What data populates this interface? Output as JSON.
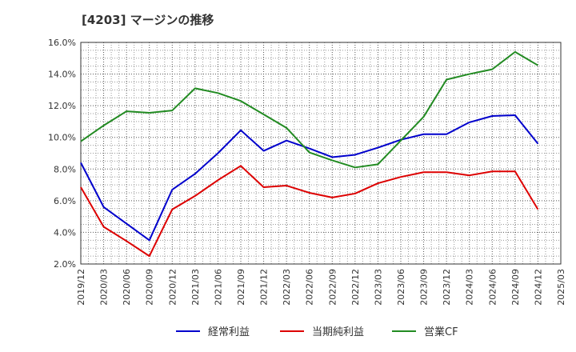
{
  "chart_data": {
    "type": "line",
    "title": "[4203]  マージンの推移",
    "xlabel": "",
    "ylabel": "",
    "x": [
      "2019/12",
      "2020/03",
      "2020/06",
      "2020/09",
      "2020/12",
      "2021/03",
      "2021/06",
      "2021/09",
      "2021/12",
      "2022/03",
      "2022/06",
      "2022/09",
      "2022/12",
      "2023/03",
      "2023/06",
      "2023/09",
      "2023/12",
      "2024/03",
      "2024/06",
      "2024/09",
      "2024/12",
      "2025/03"
    ],
    "ylim": [
      2.0,
      16.0
    ],
    "yticks": [
      2.0,
      4.0,
      6.0,
      8.0,
      10.0,
      12.0,
      14.0,
      16.0
    ],
    "ytick_suffix": "%",
    "grid": true,
    "legend_position": "bottom",
    "series": [
      {
        "name": "経常利益",
        "color": "#0000cc",
        "values": [
          8.4,
          5.6,
          4.55,
          3.5,
          6.7,
          7.7,
          9.0,
          10.45,
          9.15,
          9.8,
          9.3,
          8.75,
          8.9,
          9.35,
          9.85,
          10.2,
          10.2,
          10.95,
          11.35,
          11.4,
          9.6,
          null
        ]
      },
      {
        "name": "当期純利益",
        "color": "#dd0000",
        "values": [
          6.85,
          4.35,
          3.45,
          2.5,
          5.45,
          6.3,
          7.3,
          8.2,
          6.85,
          6.95,
          6.5,
          6.2,
          6.45,
          7.1,
          7.5,
          7.8,
          7.8,
          7.6,
          7.85,
          7.85,
          5.45,
          null
        ]
      },
      {
        "name": "営業CF",
        "color": "#228b22",
        "values": [
          9.75,
          10.75,
          11.65,
          11.55,
          11.7,
          13.1,
          12.8,
          12.3,
          11.45,
          10.6,
          9.05,
          8.55,
          8.1,
          8.3,
          9.8,
          11.3,
          13.65,
          14.0,
          14.3,
          15.4,
          14.55,
          null
        ]
      }
    ]
  }
}
